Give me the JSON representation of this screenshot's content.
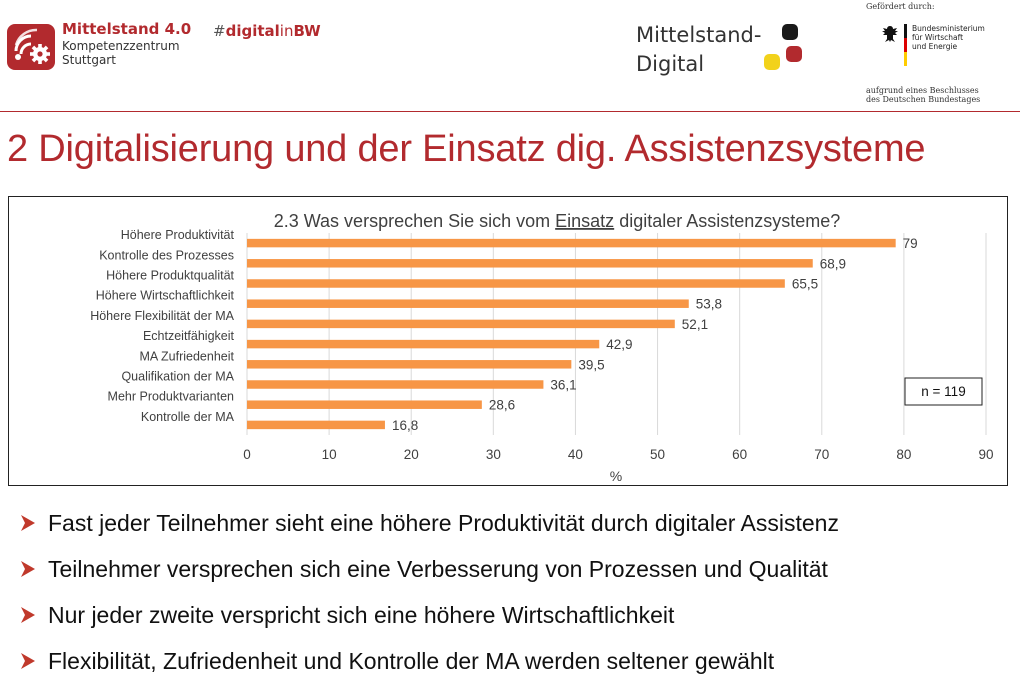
{
  "header": {
    "m40_title": "Mittelstand 4.0",
    "m40_sub1": "Kompetenzzentrum",
    "m40_sub2": "Stuttgart",
    "hashtag_part1": "#",
    "hashtag_part2": "digital",
    "hashtag_part3": "in",
    "hashtag_part4": "BW",
    "md_line1": "Mittelstand-",
    "md_line2": "Digital",
    "bmwi_top": "Gefördert durch:",
    "bmwi_name1": "Bundesministerium",
    "bmwi_name2": "für Wirtschaft",
    "bmwi_name3": "und Energie",
    "bmwi_bottom1": "aufgrund eines Beschlusses",
    "bmwi_bottom2": "des Deutschen Bundestages"
  },
  "slide_title": "2 Digitalisierung und der Einsatz dig. Assistenzsysteme",
  "chart_data": {
    "type": "bar",
    "orientation": "horizontal",
    "title_prefix": "2.3 Was versprechen Sie sich vom ",
    "title_underlined": "Einsatz",
    "title_suffix": " digitaler Assistenzsysteme?",
    "categories": [
      "Höhere Produktivität",
      "Kontrolle des Prozesses",
      "Höhere Produktqualität",
      "Höhere Wirtschaftlichkeit",
      "Höhere Flexibilität der MA",
      "Echtzeitfähigkeit",
      "MA Zufriedenheit",
      "Qualifikation der MA",
      "Mehr Produktvarianten",
      "Kontrolle der MA"
    ],
    "values": [
      79,
      68.9,
      65.5,
      53.8,
      52.1,
      42.9,
      39.5,
      36.1,
      28.6,
      16.8
    ],
    "value_labels": [
      "79",
      "68,9",
      "65,5",
      "53,8",
      "52,1",
      "42,9",
      "39,5",
      "36,1",
      "28,6",
      "16,8"
    ],
    "xlabel": "%",
    "xlim": [
      0,
      90
    ],
    "xticks": [
      "0",
      "10",
      "20",
      "30",
      "40",
      "50",
      "60",
      "70",
      "80",
      "90"
    ],
    "grid": "vertical",
    "note": "n = 119",
    "bar_color": "#f79646"
  },
  "bullets": [
    "Fast jeder Teilnehmer sieht eine höhere Produktivität durch digitaler Assistenz",
    "Teilnehmer versprechen sich eine Verbesserung von Prozessen und Qualität",
    "Nur jeder zweite verspricht sich eine höhere Wirtschaftlichkeit",
    "Flexibilität, Zufriedenheit und Kontrolle der MA werden seltener gewählt"
  ],
  "icons": {
    "m40_logo": "wifi-gear-icon",
    "md_logo": "colored-squares-icon",
    "bmwi_logo": "federal-eagle-icon",
    "bullet": "arrowhead-bullet-icon"
  },
  "colors": {
    "brand_red": "#b22a2e",
    "bar": "#f79646",
    "bullet": "#c0392b"
  }
}
